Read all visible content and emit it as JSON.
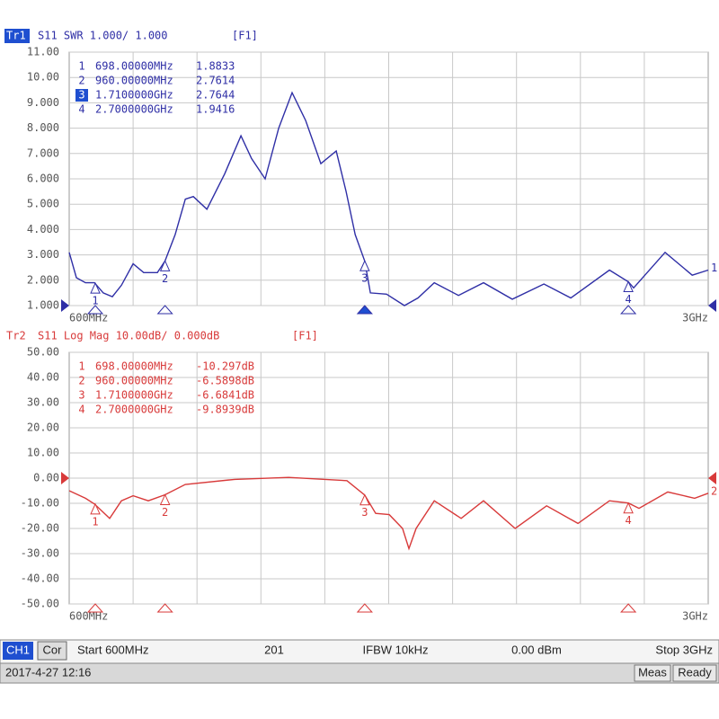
{
  "chart_data": [
    {
      "type": "line",
      "trace": "Tr1",
      "title": "S11 SWR 1.000/ 1.000",
      "format": "[F1]",
      "color": "#2f2fa6",
      "x": [
        600,
        627,
        661,
        695,
        728,
        762,
        796,
        840,
        880,
        931,
        960,
        998,
        1036,
        1066,
        1117,
        1184,
        1245,
        1285,
        1336,
        1387,
        1437,
        1488,
        1545,
        1603,
        1640,
        1674,
        1710,
        1731,
        1792,
        1859,
        1910,
        1971,
        2062,
        2156,
        2264,
        2383,
        2484,
        2629,
        2700,
        2720,
        2838,
        2940,
        3000
      ],
      "values": [
        3.1,
        2.1,
        1.9,
        1.9,
        1.5,
        1.35,
        1.8,
        2.65,
        2.3,
        2.3,
        2.76,
        3.8,
        5.2,
        5.3,
        4.8,
        6.2,
        7.7,
        6.8,
        6.0,
        8.0,
        9.4,
        8.3,
        6.6,
        7.1,
        5.5,
        3.8,
        2.76,
        1.5,
        1.45,
        1.0,
        1.3,
        1.9,
        1.4,
        1.9,
        1.25,
        1.85,
        1.3,
        2.4,
        1.94,
        1.7,
        3.1,
        2.2,
        2.4
      ],
      "xlim": [
        600,
        3000
      ],
      "xticks": [
        {
          "value": 600,
          "label": "600MHz"
        },
        {
          "value": 3000,
          "label": "3GHz"
        }
      ],
      "ylim": [
        1,
        11
      ],
      "yticks": [
        {
          "value": 11,
          "label": "11.00"
        },
        {
          "value": 10,
          "label": "10.00"
        },
        {
          "value": 9,
          "label": "9.000"
        },
        {
          "value": 8,
          "label": "8.000"
        },
        {
          "value": 7,
          "label": "7.000"
        },
        {
          "value": 6,
          "label": "6.000"
        },
        {
          "value": 5,
          "label": "5.000"
        },
        {
          "value": 4,
          "label": "4.000"
        },
        {
          "value": 3,
          "label": "3.000"
        },
        {
          "value": 2,
          "label": "2.000"
        },
        {
          "value": 1,
          "label": "1.000"
        }
      ],
      "grid": true,
      "reference": 1,
      "trace_label": "1",
      "markers": [
        {
          "label": "1",
          "x": 698,
          "freq": "698.00000MHz",
          "value": 1.8833
        },
        {
          "label": "2",
          "x": 960,
          "freq": "960.00000MHz",
          "value": 2.7614
        },
        {
          "label": "3",
          "x": 1710,
          "freq": "1.7100000GHz",
          "value": 2.7644,
          "active": true
        },
        {
          "label": "4",
          "x": 2700,
          "freq": "2.7000000GHz",
          "value": 1.9416
        }
      ]
    },
    {
      "type": "line",
      "trace": "Tr2",
      "title": "S11 Log Mag 10.00dB/ 0.000dB",
      "format": "[F1]",
      "color": "#d83a3a",
      "x": [
        600,
        661,
        695,
        752,
        796,
        840,
        897,
        960,
        1036,
        1221,
        1424,
        1643,
        1710,
        1751,
        1802,
        1852,
        1876,
        1903,
        1971,
        2072,
        2156,
        2275,
        2393,
        2511,
        2629,
        2700,
        2740,
        2848,
        2949,
        3000
      ],
      "values": [
        -5,
        -8,
        -10.3,
        -16,
        -9,
        -7,
        -9,
        -6.6,
        -2.5,
        -0.5,
        0.3,
        -1.0,
        -6.7,
        -14,
        -14.5,
        -20,
        -28,
        -20,
        -9,
        -16,
        -9,
        -20,
        -11,
        -18,
        -9,
        -9.9,
        -12,
        -5.5,
        -8,
        -6
      ],
      "xlim": [
        600,
        3000
      ],
      "xticks": [
        {
          "value": 600,
          "label": "600MHz"
        },
        {
          "value": 3000,
          "label": "3GHz"
        }
      ],
      "ylim": [
        -50,
        50
      ],
      "yticks": [
        {
          "value": 50,
          "label": "50.00"
        },
        {
          "value": 40,
          "label": "40.00"
        },
        {
          "value": 30,
          "label": "30.00"
        },
        {
          "value": 20,
          "label": "20.00"
        },
        {
          "value": 10,
          "label": "10.00"
        },
        {
          "value": 0,
          "label": "0.00"
        },
        {
          "value": -10,
          "label": "-10.00"
        },
        {
          "value": -20,
          "label": "-20.00"
        },
        {
          "value": -30,
          "label": "-30.00"
        },
        {
          "value": -40,
          "label": "-40.00"
        },
        {
          "value": -50,
          "label": "-50.00"
        }
      ],
      "grid": true,
      "reference": 0,
      "trace_label": "2",
      "markers": [
        {
          "label": "1",
          "x": 698,
          "freq": "698.00000MHz",
          "value": -10.297,
          "value_label": "-10.297dB"
        },
        {
          "label": "2",
          "x": 960,
          "freq": "960.00000MHz",
          "value": -6.5898,
          "value_label": "-6.5898dB"
        },
        {
          "label": "3",
          "x": 1710,
          "freq": "1.7100000GHz",
          "value": -6.6841,
          "value_label": "-6.6841dB"
        },
        {
          "label": "4",
          "x": 2700,
          "freq": "2.7000000GHz",
          "value": -9.8939,
          "value_label": "-9.8939dB"
        }
      ]
    }
  ],
  "status_bar": {
    "channel": "CH1",
    "correction": "Cor",
    "start": "Start 600MHz",
    "points": "201",
    "ifbw": "IFBW 10kHz",
    "power": "0.00 dBm",
    "stop": "Stop 3GHz",
    "datetime": "2017-4-27 12:16",
    "meas": "Meas",
    "state": "Ready"
  }
}
